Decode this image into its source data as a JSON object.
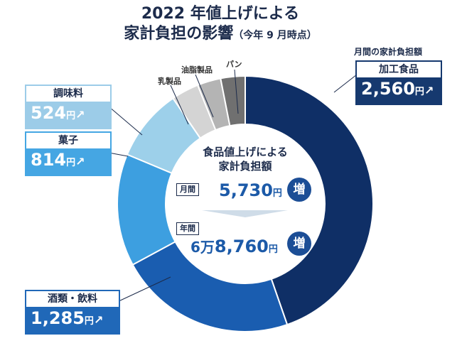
{
  "title": {
    "line1": "2022 年値上げによる",
    "line2": "家計負担の影響",
    "line2_sub": "（今年 9 月時点）"
  },
  "top_note": "月間の家計負担額",
  "center": {
    "title_line1": "食品値上げによる",
    "title_line2": "家計負担額",
    "monthly_label": "月間",
    "monthly_value": "5,730",
    "yearly_label": "年間",
    "yearly_prefix": "6万",
    "yearly_value": "8,760",
    "unit": "円",
    "increase_badge": "増"
  },
  "labels": {
    "processed": {
      "name": "加工食品",
      "value": "2,560",
      "unit": "円",
      "arrow": "↗"
    },
    "seasoning": {
      "name": "調味料",
      "value": "524",
      "unit": "円",
      "arrow": "↗"
    },
    "sweets": {
      "name": "菓子",
      "value": "814",
      "unit": "円",
      "arrow": "↗"
    },
    "drinks": {
      "name": "酒類・飲料",
      "value": "1,285",
      "unit": "円",
      "arrow": "↗"
    },
    "dairy": {
      "name": "乳製品"
    },
    "oils": {
      "name": "油脂製品"
    },
    "bread": {
      "name": "パン"
    }
  },
  "colors": {
    "processed": "#0f2f66",
    "drinks": "#1a5db0",
    "sweets": "#3d9fe0",
    "seasoning": "#9dd0ea",
    "dairy": "#d4d4d4",
    "oils": "#b4b4b4",
    "bread": "#707070",
    "label_box_dark": "#16396f",
    "label_box_mid": "#2068b8",
    "label_box_light": "#45a6e3",
    "label_box_pale": "#9ccce8"
  },
  "chart_data": {
    "type": "pie",
    "title": "2022 年値上げによる家計負担の影響（今年 9 月時点）",
    "categories": [
      "加工食品",
      "酒類・飲料",
      "菓子",
      "調味料",
      "乳製品",
      "油脂製品",
      "パン"
    ],
    "values": [
      2560,
      1285,
      814,
      524,
      200,
      170,
      177
    ],
    "total": 5730,
    "unit": "円"
  }
}
